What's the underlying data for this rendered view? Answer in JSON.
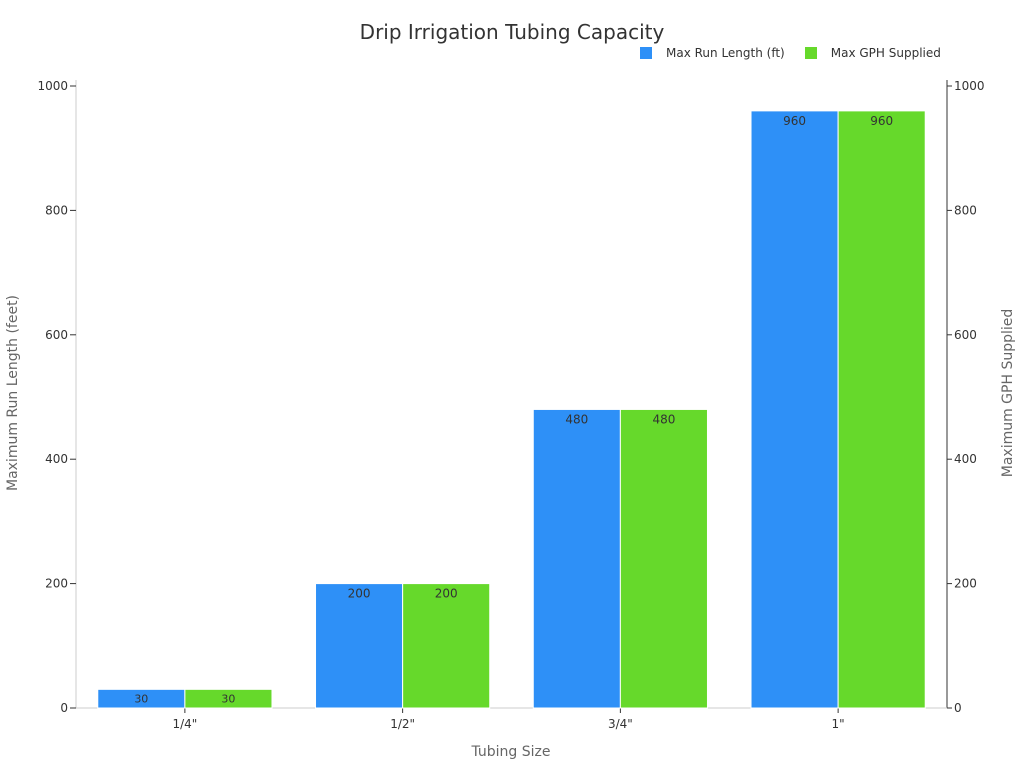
{
  "chart_data": {
    "type": "bar",
    "title": "Drip Irrigation Tubing Capacity",
    "xlabel": "Tubing Size",
    "ylabel": "Maximum Run Length (feet)",
    "y2label": "Maximum GPH Supplied",
    "categories": [
      "1/4\"",
      "1/2\"",
      "3/4\"",
      "1\""
    ],
    "series": [
      {
        "name": "Max Run Length (ft)",
        "values": [
          30,
          200,
          480,
          960
        ],
        "color": "#2E90F7",
        "axis": "left"
      },
      {
        "name": "Max GPH Supplied",
        "values": [
          30,
          200,
          480,
          960
        ],
        "color": "#66D92B",
        "axis": "right"
      }
    ],
    "ylim": [
      0,
      1000
    ],
    "y2lim": [
      0,
      1000
    ],
    "yticks": [
      0,
      200,
      400,
      600,
      800,
      1000
    ],
    "legend_position": "top-right",
    "grid": false
  }
}
